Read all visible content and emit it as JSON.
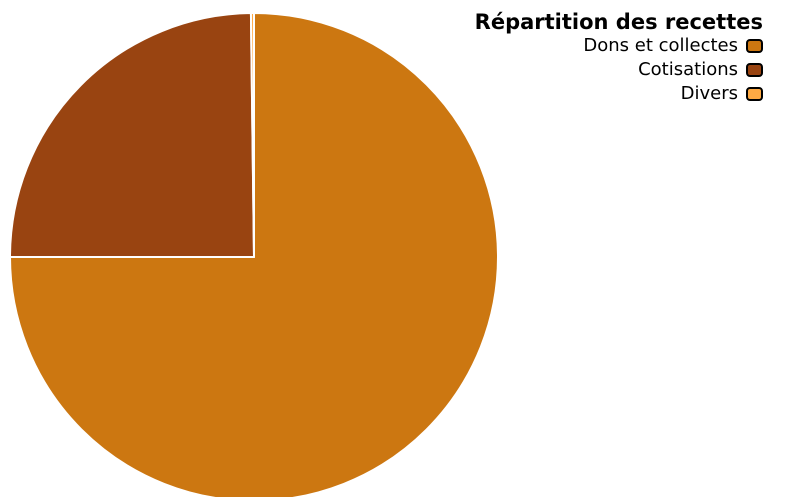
{
  "chart_data": {
    "type": "pie",
    "title": "",
    "legend": {
      "title": "Répartition des recettes",
      "placement": "top-right"
    },
    "slices": [
      {
        "label": "Dons et collectes",
        "value": 75.0,
        "color": "#CC7711"
      },
      {
        "label": "Cotisations",
        "value": 24.8,
        "color": "#994411"
      },
      {
        "label": "Divers",
        "value": 0.2,
        "color": "#FFAA44"
      }
    ],
    "start_angle": "12 o'clock",
    "direction": "clockwise"
  }
}
